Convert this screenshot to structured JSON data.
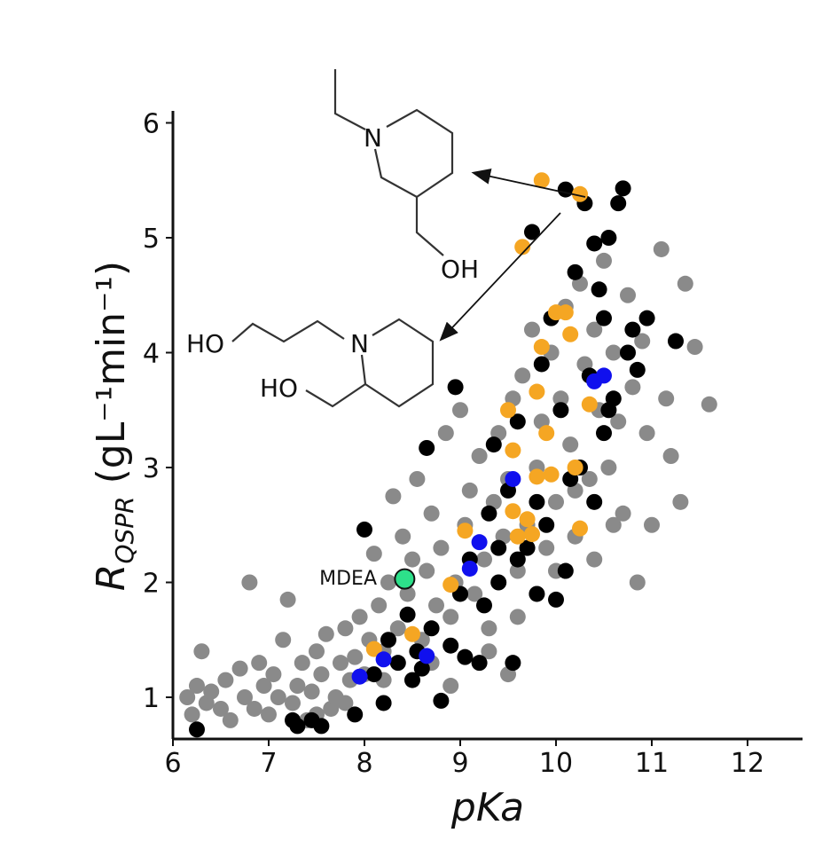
{
  "chart_data": {
    "type": "scatter",
    "title": "",
    "xlabel": "pKa",
    "ylabel_main": "R",
    "ylabel_sub": "QSPR",
    "ylabel_units": "(gL⁻¹min⁻¹)",
    "xlim": [
      6,
      12.6
    ],
    "ylim": [
      0.65,
      6.1
    ],
    "xticks": [
      "6",
      "7",
      "8",
      "9",
      "10",
      "11",
      "12"
    ],
    "yticks": [
      "1",
      "2",
      "3",
      "4",
      "5",
      "6"
    ],
    "grid": false,
    "legend": "none",
    "colors": {
      "gray": "#8a8a8a",
      "black": "#000000",
      "orange": "#f5a623",
      "blue": "#1010ee",
      "green": "#2de08a"
    },
    "series": [
      {
        "color_key": "gray",
        "points": [
          [
            6.15,
            1.0
          ],
          [
            6.2,
            0.85
          ],
          [
            6.25,
            1.1
          ],
          [
            6.3,
            1.4
          ],
          [
            6.35,
            0.95
          ],
          [
            6.4,
            1.05
          ],
          [
            6.5,
            0.9
          ],
          [
            6.55,
            1.15
          ],
          [
            6.6,
            0.8
          ],
          [
            6.7,
            1.25
          ],
          [
            6.75,
            1.0
          ],
          [
            6.8,
            2.0
          ],
          [
            6.85,
            0.9
          ],
          [
            6.9,
            1.3
          ],
          [
            6.95,
            1.1
          ],
          [
            7.0,
            0.85
          ],
          [
            7.05,
            1.2
          ],
          [
            7.1,
            1.0
          ],
          [
            7.15,
            1.5
          ],
          [
            7.2,
            1.85
          ],
          [
            7.25,
            0.95
          ],
          [
            7.3,
            1.1
          ],
          [
            7.35,
            1.3
          ],
          [
            7.4,
            0.8
          ],
          [
            7.45,
            1.05
          ],
          [
            7.5,
            1.4
          ],
          [
            7.55,
            1.2
          ],
          [
            7.6,
            1.55
          ],
          [
            7.65,
            0.9
          ],
          [
            7.7,
            1.0
          ],
          [
            7.75,
            1.3
          ],
          [
            7.8,
            1.6
          ],
          [
            7.85,
            1.15
          ],
          [
            7.9,
            1.35
          ],
          [
            7.95,
            1.7
          ],
          [
            8.0,
            1.2
          ],
          [
            8.05,
            1.5
          ],
          [
            8.1,
            2.25
          ],
          [
            8.15,
            1.8
          ],
          [
            8.2,
            1.4
          ],
          [
            8.25,
            2.0
          ],
          [
            8.3,
            2.75
          ],
          [
            8.35,
            1.6
          ],
          [
            8.4,
            2.4
          ],
          [
            8.45,
            1.9
          ],
          [
            8.5,
            2.2
          ],
          [
            8.55,
            2.9
          ],
          [
            8.6,
            1.5
          ],
          [
            8.65,
            2.1
          ],
          [
            8.7,
            2.6
          ],
          [
            8.75,
            1.8
          ],
          [
            8.8,
            2.3
          ],
          [
            8.85,
            3.3
          ],
          [
            8.9,
            1.7
          ],
          [
            8.95,
            2.0
          ],
          [
            9.0,
            3.5
          ],
          [
            9.05,
            2.5
          ],
          [
            9.1,
            2.8
          ],
          [
            9.15,
            1.9
          ],
          [
            9.2,
            3.1
          ],
          [
            9.25,
            2.2
          ],
          [
            9.3,
            1.6
          ],
          [
            9.35,
            2.7
          ],
          [
            9.4,
            3.3
          ],
          [
            9.45,
            2.4
          ],
          [
            9.5,
            2.9
          ],
          [
            9.55,
            3.6
          ],
          [
            9.6,
            2.1
          ],
          [
            9.65,
            3.8
          ],
          [
            9.7,
            2.5
          ],
          [
            9.75,
            4.2
          ],
          [
            9.8,
            3.0
          ],
          [
            9.85,
            3.4
          ],
          [
            9.9,
            2.3
          ],
          [
            9.95,
            4.0
          ],
          [
            10.0,
            2.7
          ],
          [
            10.05,
            3.6
          ],
          [
            10.1,
            4.4
          ],
          [
            10.15,
            3.2
          ],
          [
            10.2,
            2.4
          ],
          [
            10.25,
            4.6
          ],
          [
            10.3,
            3.9
          ],
          [
            10.35,
            2.9
          ],
          [
            10.4,
            4.2
          ],
          [
            10.45,
            3.5
          ],
          [
            10.5,
            4.8
          ],
          [
            10.55,
            3.0
          ],
          [
            10.6,
            4.0
          ],
          [
            10.65,
            3.4
          ],
          [
            10.7,
            2.6
          ],
          [
            10.75,
            4.5
          ],
          [
            10.8,
            3.7
          ],
          [
            10.85,
            2.0
          ],
          [
            10.9,
            4.1
          ],
          [
            10.95,
            3.3
          ],
          [
            11.0,
            2.5
          ],
          [
            11.1,
            4.9
          ],
          [
            11.15,
            3.6
          ],
          [
            11.2,
            3.1
          ],
          [
            11.3,
            2.7
          ],
          [
            11.35,
            4.6
          ],
          [
            11.45,
            4.05
          ],
          [
            11.6,
            3.55
          ],
          [
            9.6,
            1.7
          ],
          [
            9.8,
            1.9
          ],
          [
            10.0,
            2.1
          ],
          [
            10.2,
            2.8
          ],
          [
            10.4,
            2.2
          ],
          [
            10.6,
            2.5
          ],
          [
            9.3,
            1.4
          ],
          [
            9.5,
            1.2
          ],
          [
            8.7,
            1.3
          ],
          [
            8.9,
            1.1
          ],
          [
            7.8,
            0.95
          ],
          [
            8.2,
            1.15
          ],
          [
            7.5,
            0.85
          ]
        ]
      },
      {
        "color_key": "black",
        "points": [
          [
            6.25,
            0.72
          ],
          [
            7.25,
            0.8
          ],
          [
            7.3,
            0.75
          ],
          [
            7.45,
            0.8
          ],
          [
            7.55,
            0.75
          ],
          [
            7.9,
            0.85
          ],
          [
            8.0,
            2.46
          ],
          [
            8.1,
            1.2
          ],
          [
            8.2,
            0.95
          ],
          [
            8.25,
            1.5
          ],
          [
            8.35,
            1.3
          ],
          [
            8.45,
            1.72
          ],
          [
            8.5,
            1.15
          ],
          [
            8.55,
            1.4
          ],
          [
            8.6,
            1.25
          ],
          [
            8.65,
            3.17
          ],
          [
            8.7,
            1.6
          ],
          [
            8.8,
            0.97
          ],
          [
            8.9,
            1.45
          ],
          [
            8.95,
            3.7
          ],
          [
            9.0,
            1.9
          ],
          [
            9.05,
            1.35
          ],
          [
            9.1,
            2.2
          ],
          [
            9.2,
            1.3
          ],
          [
            9.25,
            1.8
          ],
          [
            9.3,
            2.6
          ],
          [
            9.35,
            3.2
          ],
          [
            9.4,
            2.0
          ],
          [
            9.5,
            2.8
          ],
          [
            9.55,
            1.3
          ],
          [
            9.6,
            3.4
          ],
          [
            9.7,
            2.3
          ],
          [
            9.75,
            5.05
          ],
          [
            9.8,
            1.9
          ],
          [
            9.85,
            3.9
          ],
          [
            9.9,
            2.5
          ],
          [
            9.95,
            4.3
          ],
          [
            10.0,
            1.85
          ],
          [
            10.05,
            3.5
          ],
          [
            10.1,
            5.42
          ],
          [
            10.15,
            2.9
          ],
          [
            10.2,
            4.7
          ],
          [
            10.25,
            3.0
          ],
          [
            10.3,
            5.3
          ],
          [
            10.35,
            3.8
          ],
          [
            10.4,
            2.7
          ],
          [
            10.45,
            4.55
          ],
          [
            10.5,
            3.3
          ],
          [
            10.55,
            5.0
          ],
          [
            10.6,
            3.6
          ],
          [
            10.65,
            5.3
          ],
          [
            10.7,
            5.43
          ],
          [
            10.75,
            4.0
          ],
          [
            10.8,
            4.2
          ],
          [
            10.85,
            3.85
          ],
          [
            10.95,
            4.3
          ],
          [
            11.25,
            4.1
          ],
          [
            10.4,
            4.95
          ],
          [
            10.5,
            4.3
          ],
          [
            10.55,
            3.5
          ],
          [
            9.4,
            2.3
          ],
          [
            9.6,
            2.2
          ],
          [
            9.8,
            2.7
          ],
          [
            10.1,
            2.1
          ]
        ]
      },
      {
        "color_key": "orange",
        "points": [
          [
            8.1,
            1.42
          ],
          [
            8.5,
            1.55
          ],
          [
            8.9,
            1.98
          ],
          [
            9.05,
            2.45
          ],
          [
            9.5,
            3.5
          ],
          [
            9.55,
            3.15
          ],
          [
            9.6,
            2.4
          ],
          [
            9.7,
            2.55
          ],
          [
            9.75,
            2.42
          ],
          [
            9.8,
            3.66
          ],
          [
            9.85,
            4.05
          ],
          [
            9.9,
            3.3
          ],
          [
            9.95,
            2.94
          ],
          [
            10.0,
            4.35
          ],
          [
            10.1,
            4.35
          ],
          [
            10.15,
            4.16
          ],
          [
            10.2,
            3.0
          ],
          [
            10.25,
            2.47
          ],
          [
            10.35,
            3.55
          ],
          [
            9.85,
            5.5
          ],
          [
            10.25,
            5.38
          ],
          [
            9.65,
            4.92
          ],
          [
            9.8,
            2.92
          ],
          [
            9.55,
            2.62
          ]
        ]
      },
      {
        "color_key": "blue",
        "points": [
          [
            7.95,
            1.18
          ],
          [
            8.2,
            1.33
          ],
          [
            8.65,
            1.36
          ],
          [
            9.1,
            2.12
          ],
          [
            9.2,
            2.35
          ],
          [
            9.55,
            2.9
          ],
          [
            10.4,
            3.75
          ],
          [
            10.5,
            3.8
          ]
        ]
      },
      {
        "color_key": "green",
        "points": [
          [
            8.42,
            2.03
          ]
        ]
      }
    ],
    "annotations": [
      {
        "text": "MDEA",
        "x": 8.42,
        "y": 2.03
      },
      {
        "text": "N",
        "role": "molecule-1-N"
      },
      {
        "text": "OH",
        "role": "molecule-1-OH"
      },
      {
        "text": "N",
        "role": "molecule-2-N"
      },
      {
        "text": "HO",
        "role": "molecule-2-HO-top"
      },
      {
        "text": "HO",
        "role": "molecule-2-HO-bottom"
      }
    ]
  }
}
